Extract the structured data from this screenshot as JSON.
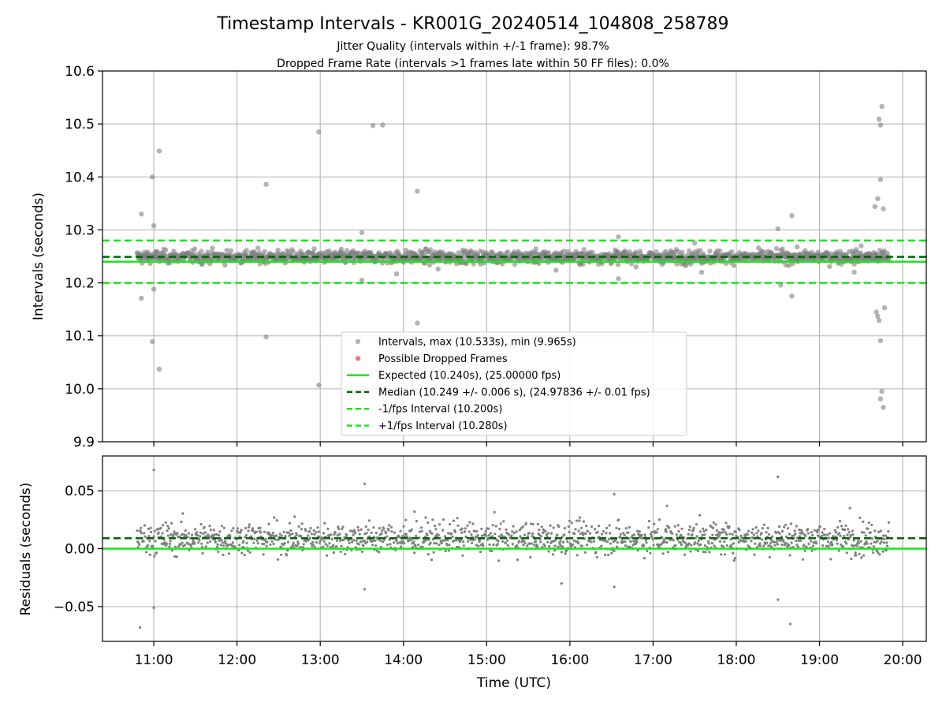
{
  "title": "Timestamp Intervals - KR001G_20240514_104808_258789",
  "subtitle_1": "Jitter Quality (intervals within +/-1 frame): 98.7%",
  "subtitle_2": "Dropped Frame Rate (intervals >1 frames late within 50 FF files): 0.0%",
  "colors": {
    "intervals": "#808080",
    "dropped": "#ff4d4d",
    "expected": "#19e619",
    "median": "#006400",
    "bounds": "#19e619",
    "grid": "#b0b0b0"
  },
  "chart_data": [
    {
      "type": "scatter",
      "ylabel": "Intervals (seconds)",
      "ylim": [
        9.9,
        10.6
      ],
      "yticks": [
        9.9,
        10.0,
        10.1,
        10.2,
        10.3,
        10.4,
        10.5,
        10.6
      ],
      "ytick_labels": [
        "9.9",
        "10.0",
        "10.1",
        "10.2",
        "10.3",
        "10.4",
        "10.5",
        "10.6"
      ],
      "xlim": [
        "10:23",
        "20:17"
      ],
      "xticks": [
        "11:00",
        "12:00",
        "13:00",
        "14:00",
        "15:00",
        "16:00",
        "17:00",
        "18:00",
        "19:00",
        "20:00"
      ],
      "grid": true,
      "legend_position": "lower-center",
      "legend": [
        "Intervals, max (10.533s), min (9.965s)",
        "Possible Dropped Frames",
        "Expected (10.240s), (25.00000 fps)",
        "Median (10.249 +/- 0.006 s), (24.97836 +/- 0.01 fps)",
        "-1/fps Interval (10.200s)",
        "+1/fps Interval (10.280s)"
      ],
      "reference_lines": {
        "expected": 10.24,
        "median": 10.249,
        "lower_bound": 10.2,
        "upper_bound": 10.28
      },
      "series": [
        {
          "name": "Intervals, max (10.533s), min (9.965s)",
          "x_range": [
            "10:48",
            "19:50"
          ],
          "median": 10.249,
          "spread": 0.006,
          "outliers": [
            [
              "10:51",
              10.33
            ],
            [
              "10:51",
              10.171
            ],
            [
              "10:59",
              10.4
            ],
            [
              "11:00",
              10.308
            ],
            [
              "10:59",
              10.089
            ],
            [
              "11:00",
              10.188
            ],
            [
              "11:04",
              10.449
            ],
            [
              "11:04",
              10.037
            ],
            [
              "12:21",
              10.386
            ],
            [
              "12:21",
              10.098
            ],
            [
              "12:59",
              10.485
            ],
            [
              "12:59",
              10.007
            ],
            [
              "13:30",
              10.295
            ],
            [
              "13:30",
              10.205
            ],
            [
              "13:38",
              10.497
            ],
            [
              "13:45",
              10.498
            ],
            [
              "14:10",
              10.373
            ],
            [
              "14:10",
              10.124
            ],
            [
              "14:25",
              10.226
            ],
            [
              "13:55",
              10.217
            ],
            [
              "15:50",
              10.224
            ],
            [
              "16:35",
              10.287
            ],
            [
              "16:35",
              10.208
            ],
            [
              "17:30",
              10.275
            ],
            [
              "17:35",
              10.22
            ],
            [
              "18:30",
              10.302
            ],
            [
              "18:32",
              10.196
            ],
            [
              "18:40",
              10.327
            ],
            [
              "18:40",
              10.175
            ],
            [
              "19:25",
              10.22
            ],
            [
              "19:30",
              10.27
            ],
            [
              "19:40",
              10.344
            ],
            [
              "19:42",
              10.359
            ],
            [
              "19:43",
              10.509
            ],
            [
              "19:44",
              10.498
            ],
            [
              "19:45",
              10.533
            ],
            [
              "19:44",
              10.395
            ],
            [
              "19:46",
              10.34
            ],
            [
              "19:47",
              10.153
            ],
            [
              "19:41",
              10.145
            ],
            [
              "19:42",
              10.137
            ],
            [
              "19:43",
              10.129
            ],
            [
              "19:44",
              10.091
            ],
            [
              "19:45",
              9.995
            ],
            [
              "19:44",
              9.981
            ],
            [
              "19:46",
              9.965
            ]
          ]
        }
      ]
    },
    {
      "type": "scatter",
      "xlabel": "Time (UTC)",
      "ylabel": "Residuals (seconds)",
      "ylim": [
        -0.08,
        0.08
      ],
      "yticks": [
        -0.05,
        0.0,
        0.05
      ],
      "ytick_labels": [
        "−0.05",
        "0.00",
        "0.05"
      ],
      "xlim": [
        "10:23",
        "20:17"
      ],
      "xticks": [
        "11:00",
        "12:00",
        "13:00",
        "14:00",
        "15:00",
        "16:00",
        "17:00",
        "18:00",
        "19:00",
        "20:00"
      ],
      "grid": true,
      "reference_lines": {
        "zero": 0.0,
        "median_offset": 0.009
      },
      "series": [
        {
          "name": "Residuals",
          "x_range": [
            "10:48",
            "19:50"
          ],
          "median": 0.009,
          "spread": 0.007,
          "outliers": [
            [
              "11:00",
              0.068
            ],
            [
              "10:50",
              -0.068
            ],
            [
              "11:00",
              -0.051
            ],
            [
              "13:32",
              0.056
            ],
            [
              "13:32",
              -0.035
            ],
            [
              "16:32",
              0.047
            ],
            [
              "16:32",
              -0.033
            ],
            [
              "18:30",
              0.062
            ],
            [
              "18:30",
              -0.044
            ],
            [
              "18:39",
              -0.065
            ],
            [
              "14:08",
              0.032
            ],
            [
              "17:10",
              0.037
            ],
            [
              "19:22",
              0.035
            ],
            [
              "15:54",
              -0.03
            ]
          ]
        }
      ]
    }
  ]
}
